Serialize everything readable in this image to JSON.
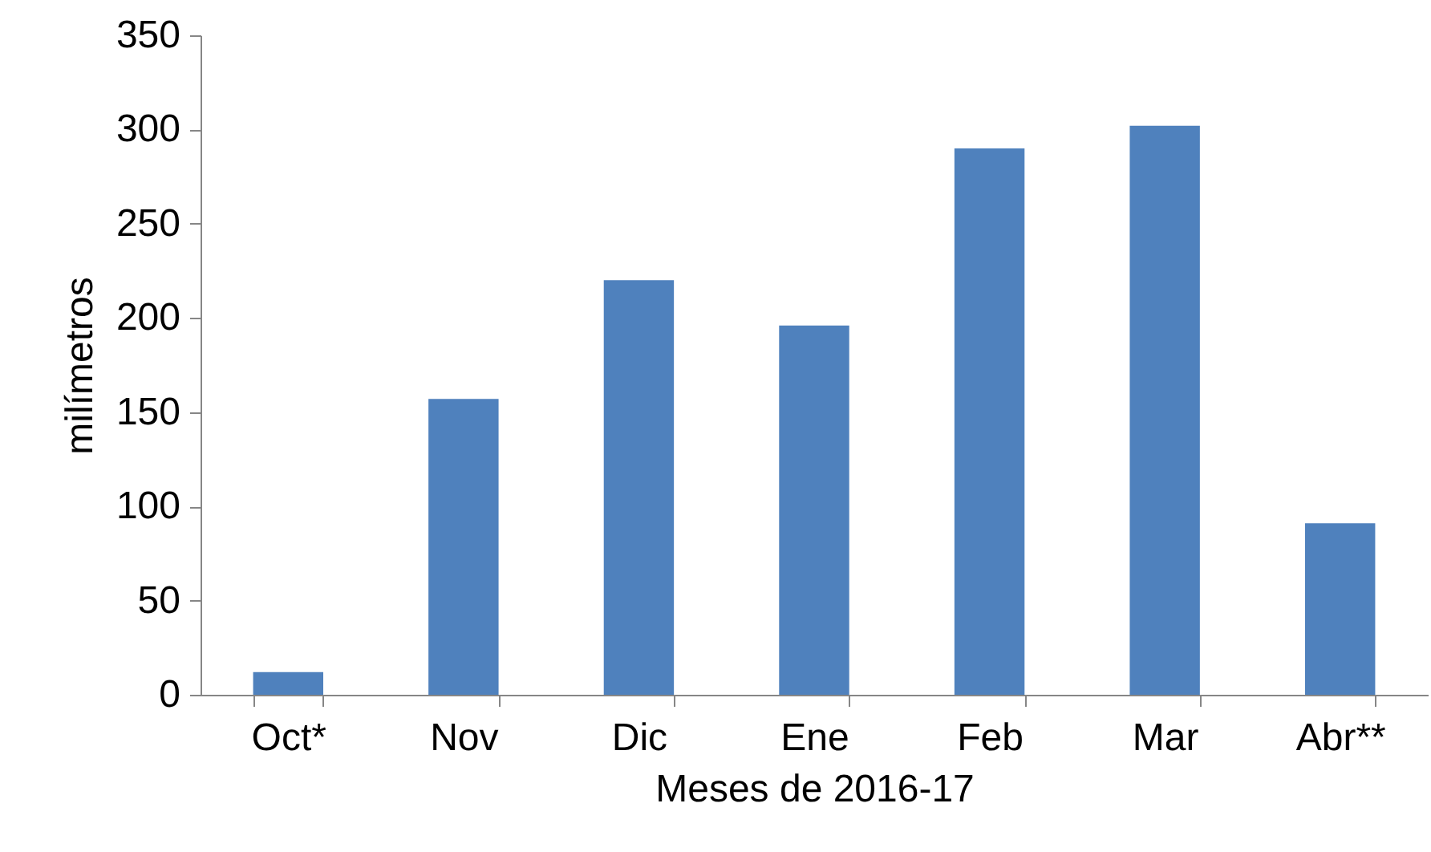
{
  "chart_data": {
    "type": "bar",
    "xlabel": "Meses de 2016-17",
    "ylabel": "milímetros",
    "categories": [
      "Oct*",
      "Nov",
      "Dic",
      "Ene",
      "Feb",
      "Mar",
      "Abr**"
    ],
    "values": [
      12,
      157,
      220,
      196,
      290,
      302,
      91
    ],
    "color": "#4f81bd",
    "ylim": [
      0,
      350
    ],
    "yticks": [
      0,
      50,
      100,
      150,
      200,
      250,
      300,
      350
    ],
    "grid": false
  }
}
